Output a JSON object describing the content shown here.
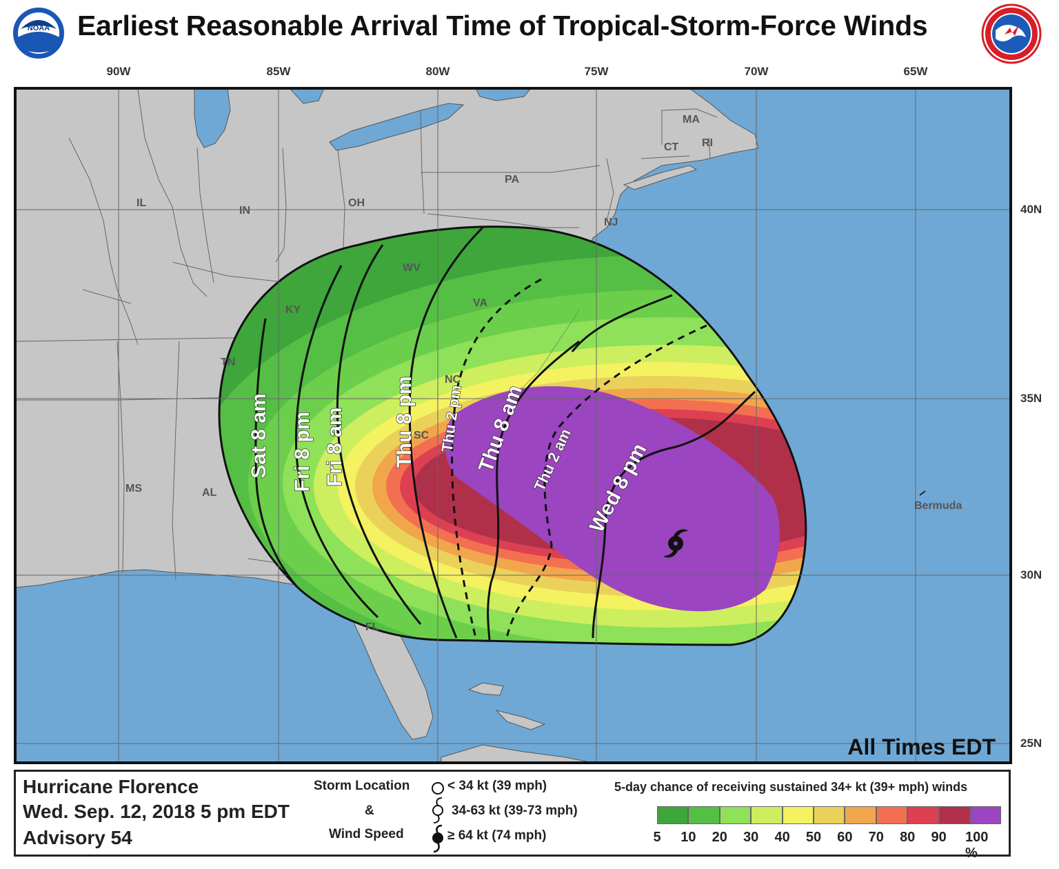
{
  "title": "Earliest Reasonable Arrival Time of Tropical-Storm-Force Winds",
  "logos": {
    "left": "noaa-logo",
    "left_text": "NOAA",
    "right": "nws-logo"
  },
  "longitude_labels": [
    "90W",
    "85W",
    "80W",
    "75W",
    "70W",
    "65W"
  ],
  "latitude_labels": [
    "40N",
    "35N",
    "30N",
    "25N"
  ],
  "map": {
    "note": "All Times EDT",
    "state_labels": [
      "MA",
      "CT",
      "RI",
      "PA",
      "NJ",
      "IL",
      "IN",
      "OH",
      "WV",
      "VA",
      "KY",
      "TN",
      "NC",
      "SC",
      "MS",
      "AL",
      "FL"
    ],
    "place_labels": [
      "Bermuda"
    ],
    "arrival_time_contours": [
      {
        "label": "Sat 8 am",
        "style": "solid"
      },
      {
        "label": "Fri 8 pm",
        "style": "solid"
      },
      {
        "label": "Fri 8 am",
        "style": "solid"
      },
      {
        "label": "Thu 8 pm",
        "style": "solid"
      },
      {
        "label": "Thu 2 pm",
        "style": "dashed"
      },
      {
        "label": "Thu 8 am",
        "style": "solid"
      },
      {
        "label": "Thu 2 am",
        "style": "dashed"
      },
      {
        "label": "Wed 8 pm",
        "style": "solid"
      }
    ],
    "colors": {
      "ocean": "#6fa8d5",
      "land": "#c6c6c6",
      "lakes": "#6fa8d5"
    }
  },
  "legend": {
    "storm_name": "Hurricane Florence",
    "date": "Wed. Sep. 12, 2018  5 pm EDT",
    "advisory": "Advisory 54",
    "storm_location_title_1": "Storm Location",
    "storm_location_title_2": "&",
    "storm_location_title_3": "Wind Speed",
    "symbols": [
      {
        "icon": "circle-icon",
        "label": "< 34 kt (39 mph)"
      },
      {
        "icon": "tropical-storm-icon",
        "label": "34-63 kt (39-73 mph)"
      },
      {
        "icon": "hurricane-icon",
        "label": "≥ 64 kt (74 mph)"
      }
    ],
    "probability_title": "5-day chance of receiving sustained 34+ kt (39+ mph) winds",
    "probability_levels": [
      "5",
      "10",
      "20",
      "30",
      "40",
      "50",
      "60",
      "70",
      "80",
      "90",
      "100 %"
    ],
    "probability_colors": [
      "#3ea63b",
      "#55be45",
      "#8ee158",
      "#cdee5f",
      "#f4f260",
      "#ead25a",
      "#f2a64c",
      "#f27051",
      "#dd4053",
      "#b0304a",
      "#9b45c0"
    ]
  }
}
